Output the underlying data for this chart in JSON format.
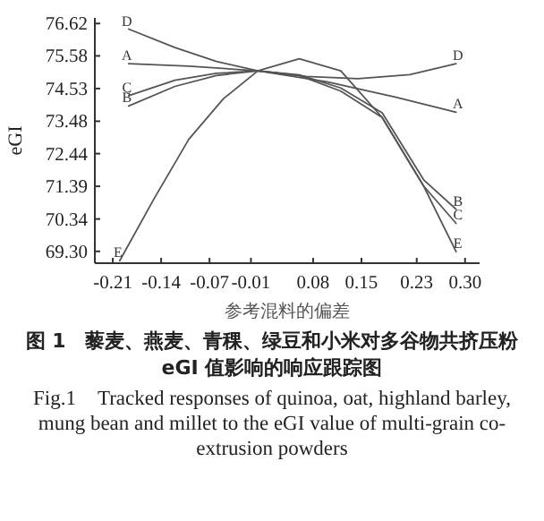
{
  "chart_data": {
    "type": "line",
    "xlabel": "参考混料的偏差",
    "ylabel": "eGI",
    "xlim": [
      -0.236,
      0.321
    ],
    "ylim": [
      68.92,
      76.8
    ],
    "xticks": [
      -0.21,
      -0.14,
      -0.07,
      -0.01,
      0.08,
      0.15,
      0.23,
      {
        "value": 0.3,
        "label": "0.30"
      }
    ],
    "yticks": [
      {
        "value": 69.3,
        "label": "69.30"
      },
      70.34,
      71.39,
      72.44,
      73.48,
      74.53,
      75.58,
      76.62
    ],
    "grid": false,
    "marker": "none",
    "line_style": "solid",
    "series": [
      {
        "name": "A",
        "color": "#555555",
        "x": [
          -0.187,
          -0.1,
          0.0,
          0.1,
          0.2,
          0.287
        ],
        "values": [
          75.33,
          75.25,
          75.1,
          74.75,
          74.25,
          73.77
        ]
      },
      {
        "name": "B",
        "color": "#555555",
        "x": [
          -0.187,
          -0.12,
          -0.06,
          0.0,
          0.06,
          0.12,
          0.18,
          0.24,
          0.287
        ],
        "values": [
          73.97,
          74.6,
          74.95,
          75.1,
          74.97,
          74.55,
          73.75,
          71.6,
          70.65
        ]
      },
      {
        "name": "C",
        "color": "#555555",
        "x": [
          -0.187,
          -0.12,
          -0.06,
          0.0,
          0.06,
          0.12,
          0.18,
          0.24,
          0.287
        ],
        "values": [
          74.3,
          74.8,
          75.02,
          75.1,
          74.95,
          74.45,
          73.6,
          71.4,
          70.2
        ]
      },
      {
        "name": "D",
        "color": "#555555",
        "x": [
          -0.187,
          -0.12,
          -0.06,
          0.0,
          0.07,
          0.145,
          0.22,
          0.287
        ],
        "values": [
          76.44,
          75.85,
          75.4,
          75.1,
          74.92,
          74.85,
          74.98,
          75.33
        ]
      },
      {
        "name": "E",
        "color": "#555555",
        "x": [
          -0.2,
          -0.15,
          -0.1,
          -0.05,
          0.0,
          0.06,
          0.12,
          0.18,
          0.24,
          0.287
        ],
        "values": [
          69.0,
          71.0,
          72.9,
          74.2,
          75.1,
          75.49,
          75.1,
          73.6,
          71.4,
          69.29
        ]
      }
    ],
    "annotations": [
      "图 1　藜麦、燕麦、青稞、绿豆和小米对多谷物共挤压粉 eGI 值影响的响应跟踪图",
      "Fig.1　Tracked responses of quinoa, oat, highland barley, mung bean and millet to the eGI value of multi-grain co-extrusion powders"
    ]
  }
}
